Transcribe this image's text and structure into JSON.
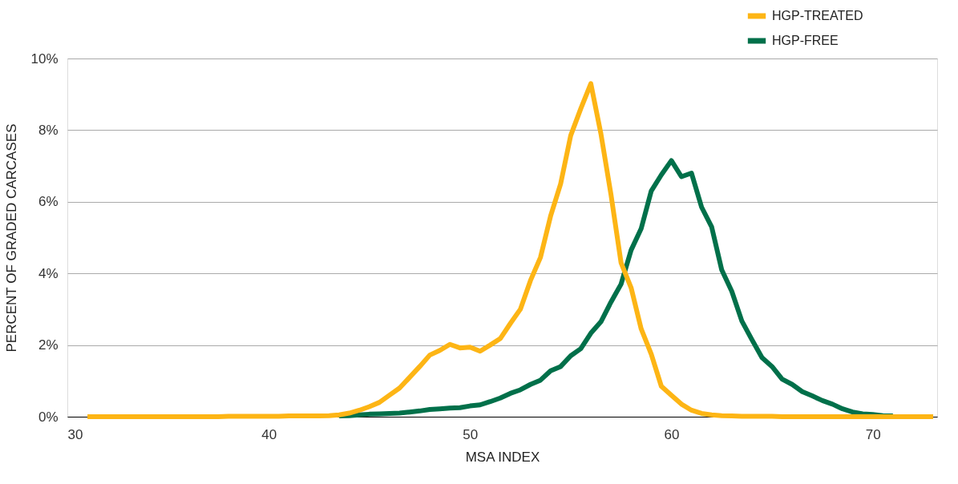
{
  "chart_data": {
    "type": "line",
    "xlabel": "MSA INDEX",
    "ylabel": "PERCENT OF GRADED CARCASES",
    "x": [
      31,
      31.5,
      32,
      32.5,
      33,
      33.5,
      34,
      34.5,
      35,
      35.5,
      36,
      36.5,
      37,
      37.5,
      38,
      38.5,
      39,
      39.5,
      40,
      40.5,
      41,
      41.5,
      42,
      42.5,
      43,
      43.5,
      44,
      44.5,
      45,
      45.5,
      46,
      46.5,
      47,
      47.5,
      48,
      48.5,
      49,
      49.5,
      50,
      50.5,
      51,
      51.5,
      52,
      52.5,
      53,
      53.5,
      54,
      54.5,
      55,
      55.5,
      56,
      56.5,
      57,
      57.5,
      58,
      58.5,
      59,
      59.5,
      60,
      60.5,
      61,
      61.5,
      62,
      62.5,
      63,
      63.5,
      64,
      64.5,
      65,
      65.5,
      66,
      66.5,
      67,
      67.5,
      68,
      68.5,
      69,
      69.5,
      70,
      70.5,
      71,
      71.5,
      72,
      72.5,
      73
    ],
    "series": [
      {
        "name": "HGP-TREATED",
        "color": "#fdb515",
        "values": [
          0,
          0,
          0,
          0,
          0,
          0,
          0,
          0,
          0,
          0,
          0,
          0,
          0,
          0,
          0.01,
          0.01,
          0.01,
          0.01,
          0.01,
          0.01,
          0.02,
          0.02,
          0.02,
          0.02,
          0.03,
          0.05,
          0.1,
          0.18,
          0.28,
          0.4,
          0.6,
          0.8,
          1.1,
          1.4,
          1.72,
          1.85,
          2.02,
          1.92,
          1.94,
          1.83,
          2.0,
          2.18,
          2.6,
          3.0,
          3.8,
          4.45,
          5.6,
          6.5,
          7.85,
          8.6,
          9.3,
          7.9,
          6.2,
          4.3,
          3.6,
          2.45,
          1.75,
          0.85,
          0.6,
          0.35,
          0.18,
          0.09,
          0.05,
          0.03,
          0.02,
          0.01,
          0.01,
          0.01,
          0.01,
          0,
          0,
          0,
          0,
          0,
          0,
          0,
          0,
          0,
          0,
          0,
          0,
          0,
          0,
          0,
          0
        ]
      },
      {
        "name": "HGP-FREE",
        "color": "#00704a",
        "values": [
          null,
          null,
          null,
          null,
          null,
          null,
          null,
          null,
          null,
          null,
          null,
          null,
          null,
          null,
          null,
          null,
          null,
          null,
          null,
          null,
          null,
          null,
          null,
          null,
          null,
          0.02,
          0.03,
          0.05,
          0.07,
          0.08,
          0.09,
          0.1,
          0.13,
          0.16,
          0.2,
          0.22,
          0.24,
          0.25,
          0.3,
          0.33,
          0.42,
          0.52,
          0.65,
          0.75,
          0.9,
          1.02,
          1.28,
          1.4,
          1.7,
          1.9,
          2.33,
          2.65,
          3.2,
          3.7,
          4.65,
          5.25,
          6.3,
          6.75,
          7.15,
          6.7,
          6.8,
          5.85,
          5.3,
          4.1,
          3.5,
          2.67,
          2.15,
          1.65,
          1.4,
          1.05,
          0.9,
          0.7,
          0.58,
          0.45,
          0.35,
          0.22,
          0.13,
          0.08,
          0.06,
          0.03,
          0.02,
          null,
          null,
          null,
          null
        ]
      }
    ],
    "xlim": [
      30,
      73.2
    ],
    "xticks": [
      30,
      40,
      50,
      60,
      70
    ],
    "ylim": [
      0,
      10
    ],
    "yticks": [
      {
        "value": 0,
        "label": "0%"
      },
      {
        "value": 2,
        "label": "2%"
      },
      {
        "value": 4,
        "label": "4%"
      },
      {
        "value": 6,
        "label": "6%"
      },
      {
        "value": 8,
        "label": "8%"
      },
      {
        "value": 10,
        "label": "10%"
      }
    ],
    "grid": "y",
    "legend": "top right",
    "marker": "none",
    "line_style": "solid"
  }
}
